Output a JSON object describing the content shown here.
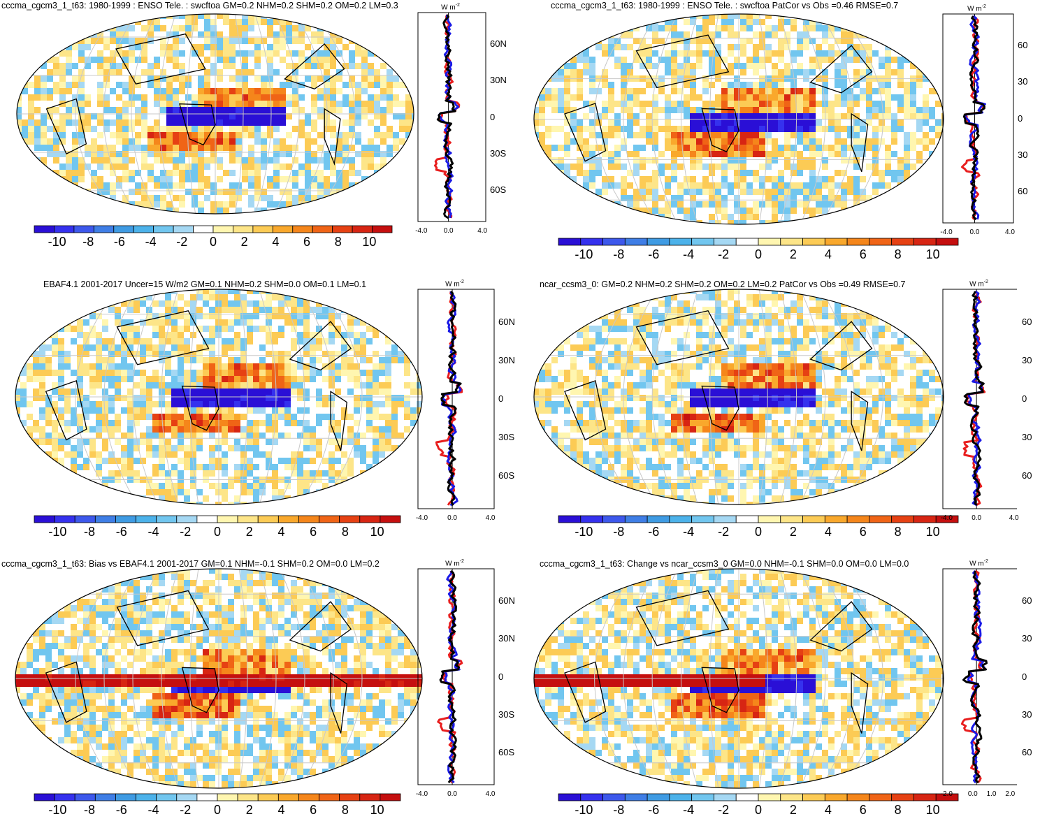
{
  "colors": {
    "scale": [
      "#2a0fd6",
      "#3531ee",
      "#3d58ec",
      "#3f7ee6",
      "#3f9be3",
      "#4cb2ea",
      "#71c6ef",
      "#a5d8f3",
      "#ffffff",
      "#fff6b0",
      "#fde588",
      "#fccb55",
      "#f9a82c",
      "#f5861b",
      "#f06416",
      "#e64113",
      "#d72513",
      "#c50f0f"
    ],
    "ocean": "#ffffff",
    "obs_line": "#e81e1e",
    "model_line": "#1a1ae6",
    "diff_line": "#000000"
  },
  "colorbar": {
    "tick_labels": [
      "-10",
      "-8",
      "-6",
      "-4",
      "-2",
      "0",
      "2",
      "4",
      "6",
      "8",
      "10"
    ]
  },
  "panels": [
    {
      "id": "cccma-enso-left",
      "title": "cccma_cgcm3_1_t63: 1980-1999 : ENSO Tele. : swcftoa GM=0.2 NHM=0.2 SHM=0.2 OM=0.2 LM=0.3",
      "zonal_units": "W m",
      "zonal_units_exp": "-2",
      "lat_labels": [
        "60N",
        "30N",
        "0",
        "30S",
        "60S"
      ],
      "x_labels": [
        "-4.0",
        "0.0",
        "4.0"
      ]
    },
    {
      "id": "cccma-patcor-right",
      "title": "cccma_cgcm3_1_t63: 1980-1999 : ENSO Tele. : swcftoa PatCor vs Obs =0.46 RMSE=0.7",
      "zonal_units": "W m",
      "zonal_units_exp": "-2",
      "lat_labels": [
        "60",
        "30",
        "0",
        "30",
        "60"
      ],
      "x_labels": [
        "-4.0",
        "0.0",
        "4.0"
      ]
    },
    {
      "id": "ebaf-obs-left",
      "title": "EBAF4.1 2001-2017 Uncer=15 W/m2 GM=0.1 NHM=0.2 SHM=0.0 OM=0.1 LM=0.1",
      "zonal_units": "W m",
      "zonal_units_exp": "-2",
      "lat_labels": [
        "60N",
        "30N",
        "0",
        "30S",
        "60S"
      ],
      "x_labels": [
        "-4.0",
        "0.0",
        "4.0"
      ]
    },
    {
      "id": "ncar-ccsm3-right",
      "title": "ncar_ccsm3_0: GM=0.2 NHM=0.2 SHM=0.2 OM=0.2 LM=0.2 PatCor vs Obs =0.49 RMSE=0.7",
      "zonal_units": "W m",
      "zonal_units_exp": "-2",
      "lat_labels": [
        "60",
        "30",
        "0",
        "30",
        "60"
      ],
      "x_labels": [
        "-4.0",
        "0.0",
        "4.0"
      ]
    },
    {
      "id": "cccma-bias-left",
      "title": "cccma_cgcm3_1_t63: Bias vs EBAF4.1 2001-2017 GM=0.1 NHM=-0.1 SHM=0.2 OM=0.0 LM=0.2",
      "zonal_units": "W m",
      "zonal_units_exp": "-2",
      "lat_labels": [
        "60N",
        "30N",
        "0",
        "30S",
        "60S"
      ],
      "x_labels": [
        "-4.0",
        "0.0",
        "4.0"
      ]
    },
    {
      "id": "cccma-change-right",
      "title": "cccma_cgcm3_1_t63: Change vs ncar_ccsm3_0 GM=0.0 NHM=-0.1 SHM=0.0 OM=0.0 LM=0.0",
      "zonal_units": "W m",
      "zonal_units_exp": "-2",
      "lat_labels": [
        "60",
        "30",
        "0",
        "30",
        "60"
      ],
      "x_labels": [
        "-2.0",
        "0.0",
        "1.0",
        "2.0"
      ]
    }
  ]
}
